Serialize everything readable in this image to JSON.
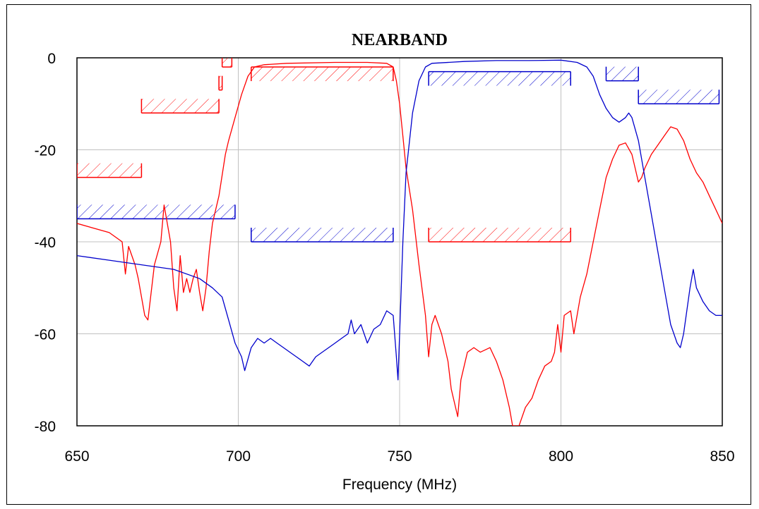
{
  "chart_data": {
    "type": "line",
    "title": "NEARBAND",
    "xlabel": "Frequency (MHz)",
    "ylabel": "",
    "xlim": [
      650,
      850
    ],
    "ylim": [
      -80,
      0
    ],
    "x_ticks": [
      "650",
      "700",
      "750",
      "800",
      "850"
    ],
    "y_ticks": [
      "0",
      "-20",
      "-40",
      "-60",
      "-80"
    ],
    "grid": true,
    "legend": "none",
    "series": [
      {
        "color": "#ff0000",
        "points": [
          [
            650,
            -36
          ],
          [
            660,
            -38
          ],
          [
            664,
            -40
          ],
          [
            665,
            -47
          ],
          [
            666,
            -41
          ],
          [
            668,
            -45
          ],
          [
            669,
            -48
          ],
          [
            670,
            -52
          ],
          [
            671,
            -56
          ],
          [
            672,
            -57
          ],
          [
            674,
            -45
          ],
          [
            676,
            -40
          ],
          [
            677,
            -32
          ],
          [
            679,
            -40
          ],
          [
            680,
            -50
          ],
          [
            681,
            -55
          ],
          [
            682,
            -43
          ],
          [
            683,
            -51
          ],
          [
            684,
            -48
          ],
          [
            685,
            -51
          ],
          [
            686,
            -48
          ],
          [
            687,
            -46
          ],
          [
            688,
            -51
          ],
          [
            689,
            -55
          ],
          [
            690,
            -50
          ],
          [
            691,
            -42
          ],
          [
            692,
            -36
          ],
          [
            694,
            -30
          ],
          [
            696,
            -21
          ],
          [
            697,
            -18
          ],
          [
            699,
            -13
          ],
          [
            701,
            -8
          ],
          [
            703,
            -4
          ],
          [
            705,
            -2
          ],
          [
            708,
            -1.5
          ],
          [
            715,
            -1.2
          ],
          [
            730,
            -1
          ],
          [
            740,
            -1
          ],
          [
            746,
            -1.2
          ],
          [
            748,
            -2
          ],
          [
            749,
            -5
          ],
          [
            750,
            -10
          ],
          [
            751,
            -17
          ],
          [
            752,
            -24
          ],
          [
            754,
            -33
          ],
          [
            756,
            -45
          ],
          [
            758,
            -56
          ],
          [
            759,
            -65
          ],
          [
            760,
            -58
          ],
          [
            761,
            -56
          ],
          [
            763,
            -60
          ],
          [
            764,
            -63
          ],
          [
            765,
            -66
          ],
          [
            766,
            -72
          ],
          [
            767,
            -75
          ],
          [
            768,
            -78
          ],
          [
            769,
            -70
          ],
          [
            771,
            -64
          ],
          [
            773,
            -63
          ],
          [
            775,
            -64
          ],
          [
            778,
            -63
          ],
          [
            780,
            -66
          ],
          [
            782,
            -70
          ],
          [
            784,
            -76
          ],
          [
            785,
            -80
          ],
          [
            787,
            -80
          ],
          [
            789,
            -76
          ],
          [
            791,
            -74
          ],
          [
            793,
            -70
          ],
          [
            795,
            -67
          ],
          [
            797,
            -66
          ],
          [
            798,
            -64
          ],
          [
            799,
            -58
          ],
          [
            800,
            -64
          ],
          [
            801,
            -56
          ],
          [
            803,
            -55
          ],
          [
            804,
            -60
          ],
          [
            806,
            -52
          ],
          [
            808,
            -47
          ],
          [
            810,
            -40
          ],
          [
            812,
            -33
          ],
          [
            814,
            -26
          ],
          [
            816,
            -22
          ],
          [
            818,
            -19
          ],
          [
            820,
            -18.5
          ],
          [
            822,
            -21
          ],
          [
            824,
            -27
          ],
          [
            825,
            -26
          ],
          [
            826,
            -24
          ],
          [
            828,
            -21
          ],
          [
            830,
            -19
          ],
          [
            832,
            -17
          ],
          [
            834,
            -15
          ],
          [
            836,
            -15.5
          ],
          [
            838,
            -18
          ],
          [
            840,
            -22
          ],
          [
            842,
            -25
          ],
          [
            844,
            -27
          ],
          [
            846,
            -30
          ],
          [
            848,
            -33
          ],
          [
            850,
            -36
          ]
        ]
      },
      {
        "color": "#0000cc",
        "points": [
          [
            650,
            -43
          ],
          [
            660,
            -44
          ],
          [
            670,
            -45
          ],
          [
            680,
            -46
          ],
          [
            688,
            -48
          ],
          [
            692,
            -50
          ],
          [
            695,
            -52
          ],
          [
            697,
            -57
          ],
          [
            699,
            -62
          ],
          [
            701,
            -65
          ],
          [
            702,
            -68
          ],
          [
            704,
            -63
          ],
          [
            706,
            -61
          ],
          [
            708,
            -62
          ],
          [
            710,
            -61
          ],
          [
            712,
            -62
          ],
          [
            714,
            -63
          ],
          [
            716,
            -64
          ],
          [
            718,
            -65
          ],
          [
            720,
            -66
          ],
          [
            722,
            -67
          ],
          [
            724,
            -65
          ],
          [
            726,
            -64
          ],
          [
            728,
            -63
          ],
          [
            730,
            -62
          ],
          [
            732,
            -61
          ],
          [
            734,
            -60
          ],
          [
            735,
            -57
          ],
          [
            736,
            -60
          ],
          [
            738,
            -58
          ],
          [
            740,
            -62
          ],
          [
            742,
            -59
          ],
          [
            744,
            -58
          ],
          [
            746,
            -55
          ],
          [
            748,
            -56
          ],
          [
            749,
            -65
          ],
          [
            749.5,
            -70
          ],
          [
            750,
            -60
          ],
          [
            751,
            -40
          ],
          [
            752,
            -25
          ],
          [
            754,
            -12
          ],
          [
            756,
            -5
          ],
          [
            758,
            -2
          ],
          [
            760,
            -1.2
          ],
          [
            770,
            -0.8
          ],
          [
            780,
            -0.6
          ],
          [
            790,
            -0.6
          ],
          [
            800,
            -0.5
          ],
          [
            805,
            -1
          ],
          [
            808,
            -2
          ],
          [
            810,
            -4
          ],
          [
            812,
            -8
          ],
          [
            814,
            -11
          ],
          [
            816,
            -13
          ],
          [
            818,
            -14
          ],
          [
            820,
            -13
          ],
          [
            821,
            -12
          ],
          [
            822,
            -13
          ],
          [
            824,
            -18
          ],
          [
            826,
            -26
          ],
          [
            828,
            -34
          ],
          [
            830,
            -42
          ],
          [
            832,
            -50
          ],
          [
            834,
            -58
          ],
          [
            836,
            -62
          ],
          [
            837,
            -63
          ],
          [
            838,
            -60
          ],
          [
            840,
            -50
          ],
          [
            841,
            -46
          ],
          [
            842,
            -50
          ],
          [
            844,
            -53
          ],
          [
            846,
            -55
          ],
          [
            848,
            -56
          ],
          [
            850,
            -56
          ]
        ]
      }
    ],
    "masks": [
      {
        "color": "#ff0000",
        "x": [
          650,
          670
        ],
        "y": -26,
        "hatch": "above"
      },
      {
        "color": "#ff0000",
        "x": [
          670,
          694
        ],
        "y": -12,
        "hatch": "above"
      },
      {
        "color": "#ff0000",
        "x": [
          694,
          695
        ],
        "y": -7,
        "hatch": "above"
      },
      {
        "color": "#ff0000",
        "x": [
          695,
          698
        ],
        "y": -2,
        "hatch": "above"
      },
      {
        "color": "#ff0000",
        "x": [
          704,
          748
        ],
        "y": -2,
        "hatch": "below"
      },
      {
        "color": "#ff0000",
        "x": [
          759,
          803
        ],
        "y": -40,
        "hatch": "above"
      },
      {
        "color": "#0000cc",
        "x": [
          650,
          699
        ],
        "y": -35,
        "hatch": "above"
      },
      {
        "color": "#0000cc",
        "x": [
          704,
          748
        ],
        "y": -40,
        "hatch": "above"
      },
      {
        "color": "#0000cc",
        "x": [
          759,
          803
        ],
        "y": -3,
        "hatch": "below"
      },
      {
        "color": "#0000cc",
        "x": [
          814,
          824
        ],
        "y": -5,
        "hatch": "above"
      },
      {
        "color": "#0000cc",
        "x": [
          824,
          849
        ],
        "y": -10,
        "hatch": "above"
      }
    ]
  }
}
